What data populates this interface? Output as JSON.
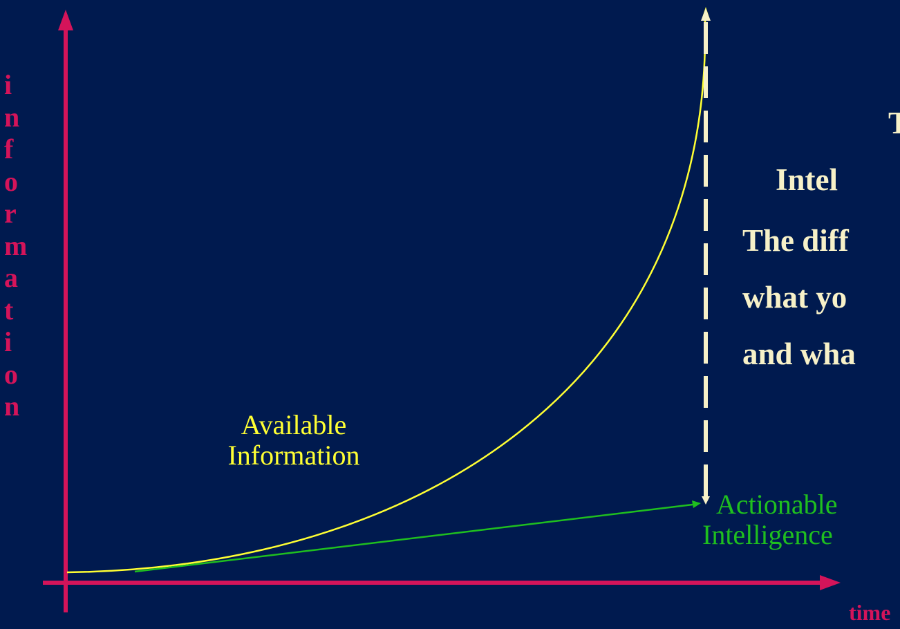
{
  "axes": {
    "y_label_letters": [
      "i",
      "n",
      "f",
      "o",
      "r",
      "m",
      "a",
      "t",
      "i",
      "o",
      "n"
    ],
    "x_label": "time"
  },
  "curves": {
    "available": {
      "label_lines": [
        "Available",
        "Information"
      ],
      "color": "#ffff33"
    },
    "actionable": {
      "label_lines": [
        "Actionable",
        "Intelligence"
      ],
      "color": "#1fbf1f"
    }
  },
  "gap_text": {
    "title_lines": [
      "T",
      "Intel"
    ],
    "description_lines": [
      "The diff",
      "what yo",
      "and wha"
    ],
    "color": "#f7f1c8"
  },
  "colors": {
    "background": "#001a4f",
    "axis": "#d4145a",
    "gap_marker": "#f7f1c8"
  }
}
